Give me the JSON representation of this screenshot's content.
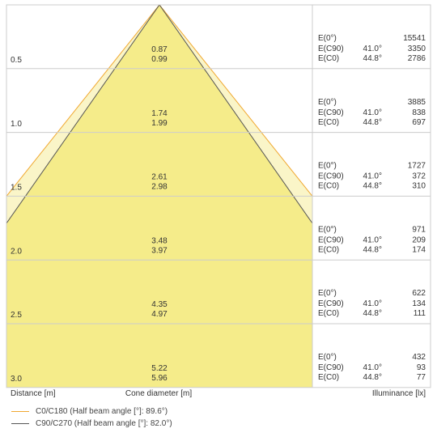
{
  "chart_data": {
    "type": "table",
    "rows": [
      {
        "distance": "0.5",
        "d_c0": "0.87",
        "d_c90": "0.99",
        "e0": "15541",
        "e_c90": "3350",
        "e_c0": "2786"
      },
      {
        "distance": "1.0",
        "d_c0": "1.74",
        "d_c90": "1.99",
        "e0": "3885",
        "e_c90": "838",
        "e_c0": "697"
      },
      {
        "distance": "1.5",
        "d_c0": "2.61",
        "d_c90": "2.98",
        "e0": "1727",
        "e_c90": "372",
        "e_c0": "310"
      },
      {
        "distance": "2.0",
        "d_c0": "3.48",
        "d_c90": "3.97",
        "e0": "971",
        "e_c90": "209",
        "e_c0": "174"
      },
      {
        "distance": "2.5",
        "d_c0": "4.35",
        "d_c90": "4.97",
        "e0": "622",
        "e_c90": "134",
        "e_c0": "111"
      },
      {
        "distance": "3.0",
        "d_c0": "5.22",
        "d_c90": "5.96",
        "e0": "432",
        "e_c90": "93",
        "e_c0": "77"
      }
    ],
    "e_labels": {
      "e0": "E(0°)",
      "e_c90": "E(C90)",
      "e_c0": "E(C0)"
    },
    "angles": {
      "c90": "41.0°",
      "c0": "44.8°"
    },
    "xlabel_left": "Distance [m]",
    "xlabel_center": "Cone diameter [m]",
    "xlabel_right": "Illuminance [lx]",
    "legend": [
      {
        "label": "C0/C180 (Half beam angle [°]: 89.6°)",
        "color": "#f0a830"
      },
      {
        "label": "C90/C270 (Half beam angle [°]: 82.0°)",
        "color": "#555555"
      }
    ],
    "colors": {
      "cone_fill": "#f5ec8a",
      "cone_light": "#faf5c8",
      "grid": "#cccccc"
    }
  }
}
